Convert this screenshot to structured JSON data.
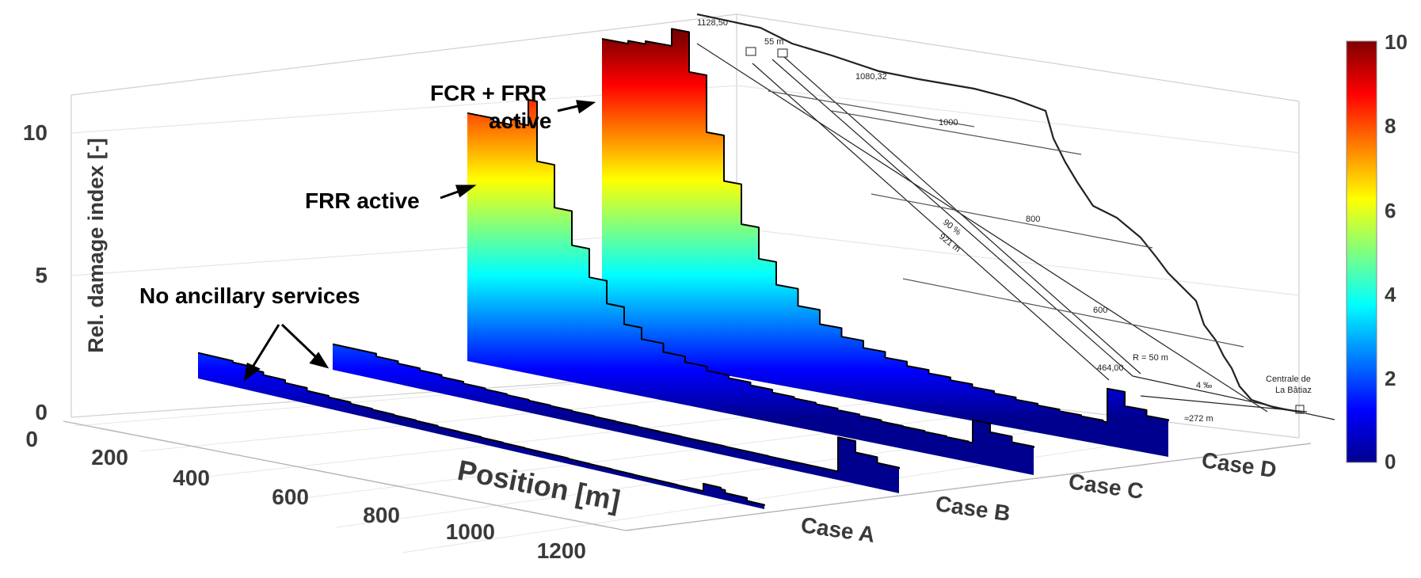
{
  "chart_data": {
    "type": "area",
    "zlabel": "Rel. damage index [-]",
    "xlabel": "Position [m]",
    "z_ticks": [
      "0",
      "5",
      "10"
    ],
    "x_ticks": [
      "0",
      "200",
      "400",
      "600",
      "800",
      "1000",
      "1200"
    ],
    "zlim": [
      0,
      10
    ],
    "xlim": [
      0,
      1300
    ],
    "cases": [
      "Case A",
      "Case B",
      "Case C",
      "Case D"
    ],
    "colormap": "jet",
    "colorbar": {
      "ticks": [
        "0",
        "2",
        "4",
        "6",
        "8",
        "10"
      ],
      "range": [
        0,
        10
      ]
    },
    "series": [
      {
        "name": "Case A",
        "x": [
          0,
          80,
          120,
          150,
          200,
          250,
          300,
          350,
          400,
          450,
          500,
          550,
          600,
          650,
          700,
          750,
          800,
          850,
          900,
          950,
          1000,
          1050,
          1100,
          1150,
          1160,
          1200,
          1210,
          1260,
          1300
        ],
        "y": [
          0.9,
          0.85,
          0.75,
          0.65,
          0.55,
          0.45,
          0.4,
          0.35,
          0.32,
          0.3,
          0.28,
          0.25,
          0.24,
          0.22,
          0.21,
          0.2,
          0.2,
          0.18,
          0.17,
          0.16,
          0.15,
          0.15,
          0.14,
          0.14,
          0.4,
          0.35,
          0.25,
          0.15,
          0.12
        ]
      },
      {
        "name": "Case B",
        "x": [
          0,
          100,
          150,
          200,
          250,
          300,
          350,
          400,
          450,
          500,
          550,
          600,
          650,
          700,
          750,
          800,
          850,
          900,
          950,
          1000,
          1050,
          1100,
          1150,
          1160,
          1200,
          1250,
          1300
        ],
        "y": [
          0.9,
          0.8,
          0.72,
          0.65,
          0.58,
          0.52,
          0.48,
          0.45,
          0.42,
          0.4,
          0.38,
          0.36,
          0.35,
          0.34,
          0.33,
          0.32,
          0.32,
          0.31,
          0.31,
          0.3,
          0.3,
          0.3,
          0.3,
          1.5,
          1.1,
          0.9,
          0.85
        ]
      },
      {
        "name": "Case C",
        "x": [
          0,
          60,
          100,
          120,
          140,
          160,
          200,
          240,
          280,
          320,
          360,
          400,
          450,
          500,
          550,
          600,
          650,
          700,
          750,
          800,
          850,
          900,
          950,
          1000,
          1050,
          1100,
          1150,
          1160,
          1200,
          1250,
          1300
        ],
        "y": [
          8.7,
          8.6,
          8.8,
          8.7,
          9.6,
          7.5,
          6.0,
          4.8,
          3.8,
          3.0,
          2.4,
          2.0,
          1.7,
          1.5,
          1.35,
          1.25,
          1.15,
          1.05,
          1.0,
          0.95,
          0.9,
          0.85,
          0.8,
          0.78,
          0.75,
          0.72,
          0.7,
          1.5,
          1.2,
          1.0,
          0.95
        ]
      },
      {
        "name": "Case D",
        "x": [
          0,
          60,
          100,
          140,
          160,
          200,
          240,
          280,
          320,
          360,
          400,
          450,
          500,
          550,
          600,
          650,
          700,
          750,
          800,
          850,
          900,
          950,
          1000,
          1050,
          1100,
          1150,
          1160,
          1200,
          1250,
          1300
        ],
        "y": [
          11.0,
          11.1,
          11.2,
          11.2,
          11.8,
          10.4,
          8.4,
          6.8,
          5.4,
          4.3,
          3.5,
          2.9,
          2.4,
          2.1,
          1.85,
          1.65,
          1.5,
          1.38,
          1.28,
          1.18,
          1.1,
          1.02,
          0.96,
          0.9,
          0.86,
          0.82,
          2.0,
          1.5,
          1.3,
          1.25
        ]
      }
    ],
    "annotations": [
      {
        "text": "No ancillary services",
        "targets": [
          "Case A",
          "Case B"
        ]
      },
      {
        "text": "FRR active",
        "target": "Case C"
      },
      {
        "text_lines": [
          "FCR + FRR",
          "active"
        ],
        "target": "Case D"
      }
    ],
    "schematic_labels": [
      "1128,50",
      "55 m",
      "1080,32",
      "1000",
      "800",
      "600",
      "90 %",
      "921 m",
      "R = 50 m",
      "464,00",
      "4 ‰",
      "Centrale de",
      "La Bâtiaz",
      "≈272 m"
    ]
  }
}
